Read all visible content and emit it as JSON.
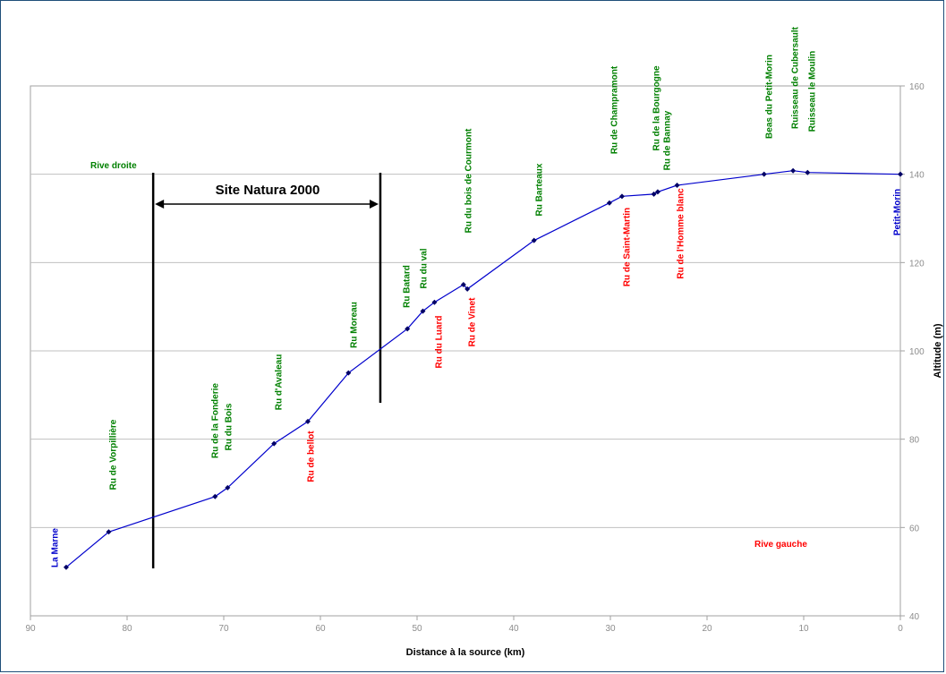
{
  "chart_data": {
    "type": "line",
    "xlabel": "Distance à la source (km)",
    "ylabel": "Altitude (m)",
    "xlim": [
      90,
      0
    ],
    "ylim": [
      40,
      160
    ],
    "x_reversed": true,
    "y_axis_side": "right",
    "grid": "horizontal",
    "x_ticks": [
      "90",
      "80",
      "70",
      "60",
      "50",
      "40",
      "30",
      "20",
      "10",
      "0"
    ],
    "y_ticks": [
      "40",
      "60",
      "80",
      "100",
      "120",
      "140",
      "160"
    ],
    "series": [
      {
        "color": "#0000cc",
        "points": [
          {
            "x": 86.3,
            "y": 51
          },
          {
            "x": 81.9,
            "y": 59
          },
          {
            "x": 70.9,
            "y": 67
          },
          {
            "x": 69.6,
            "y": 69
          },
          {
            "x": 64.8,
            "y": 79
          },
          {
            "x": 61.3,
            "y": 84
          },
          {
            "x": 57.1,
            "y": 95
          },
          {
            "x": 51.0,
            "y": 105
          },
          {
            "x": 49.4,
            "y": 109
          },
          {
            "x": 48.2,
            "y": 111
          },
          {
            "x": 45.2,
            "y": 115
          },
          {
            "x": 44.8,
            "y": 114
          },
          {
            "x": 37.9,
            "y": 125
          },
          {
            "x": 30.1,
            "y": 133.5
          },
          {
            "x": 28.8,
            "y": 135
          },
          {
            "x": 25.5,
            "y": 135.5
          },
          {
            "x": 25.1,
            "y": 136
          },
          {
            "x": 23.1,
            "y": 137.5
          },
          {
            "x": 14.1,
            "y": 140
          },
          {
            "x": 11.1,
            "y": 140.8
          },
          {
            "x": 9.6,
            "y": 140.4
          },
          {
            "x": 0,
            "y": 140
          }
        ]
      }
    ],
    "site_natura": {
      "label": "Site Natura 2000",
      "x_start": 77.3,
      "x_end": 53.8
    },
    "region_labels": {
      "left_bank": "Rive droite",
      "right_bank": "Rive gauche"
    },
    "annotations": [
      {
        "text": "La Marne",
        "x": 86.3,
        "y": 51,
        "color": "#0000cc"
      },
      {
        "text": "Ru de Vorpillière",
        "x": 81.9,
        "y": 59,
        "color": "#008000"
      },
      {
        "text": "Ru de la Fonderie",
        "x": 70.9,
        "y": 67,
        "color": "#008000"
      },
      {
        "text": "Ru du Bois",
        "x": 69.6,
        "y": 69,
        "color": "#008000"
      },
      {
        "text": "Ru d'Avaleau",
        "x": 64.8,
        "y": 79,
        "color": "#008000"
      },
      {
        "text": "Ru de bellot",
        "x": 61.3,
        "y": 84,
        "color": "#ff0000"
      },
      {
        "text": "Ru Moreau",
        "x": 57.1,
        "y": 95,
        "color": "#008000"
      },
      {
        "text": "Ru Batard",
        "x": 51.0,
        "y": 105,
        "color": "#008000"
      },
      {
        "text": "Ru du val",
        "x": 49.4,
        "y": 109,
        "color": "#008000"
      },
      {
        "text": "Ru du Luard",
        "x": 48.2,
        "y": 111,
        "color": "#ff0000"
      },
      {
        "text": "Ru du bois de Courmont",
        "x": 45.2,
        "y": 115,
        "color": "#008000"
      },
      {
        "text": "Ru de Vinet",
        "x": 44.8,
        "y": 114,
        "color": "#ff0000"
      },
      {
        "text": "Ru Barteaux",
        "x": 37.9,
        "y": 125,
        "color": "#008000"
      },
      {
        "text": "Ru de Champramont",
        "x": 30.1,
        "y": 133.5,
        "color": "#008000"
      },
      {
        "text": "Ru de Saint-Martin",
        "x": 28.8,
        "y": 135,
        "color": "#ff0000"
      },
      {
        "text": "Ru de la Bourgogne",
        "x": 25.5,
        "y": 135.5,
        "color": "#008000"
      },
      {
        "text": "Ru de Bannay",
        "x": 25.1,
        "y": 136,
        "color": "#008000"
      },
      {
        "text": "Ru de l'Homme blanc",
        "x": 23.1,
        "y": 137.5,
        "color": "#ff0000"
      },
      {
        "text": "Beas du Petit-Morin",
        "x": 14.1,
        "y": 140,
        "color": "#008000"
      },
      {
        "text": "Ruisseau de Cubersault",
        "x": 11.1,
        "y": 140.8,
        "color": "#008000"
      },
      {
        "text": "Ruisseau le Moulin",
        "x": 9.6,
        "y": 140.4,
        "color": "#008000"
      },
      {
        "text": "Petit-Morin",
        "x": 0,
        "y": 140,
        "color": "#0000cc"
      }
    ]
  }
}
